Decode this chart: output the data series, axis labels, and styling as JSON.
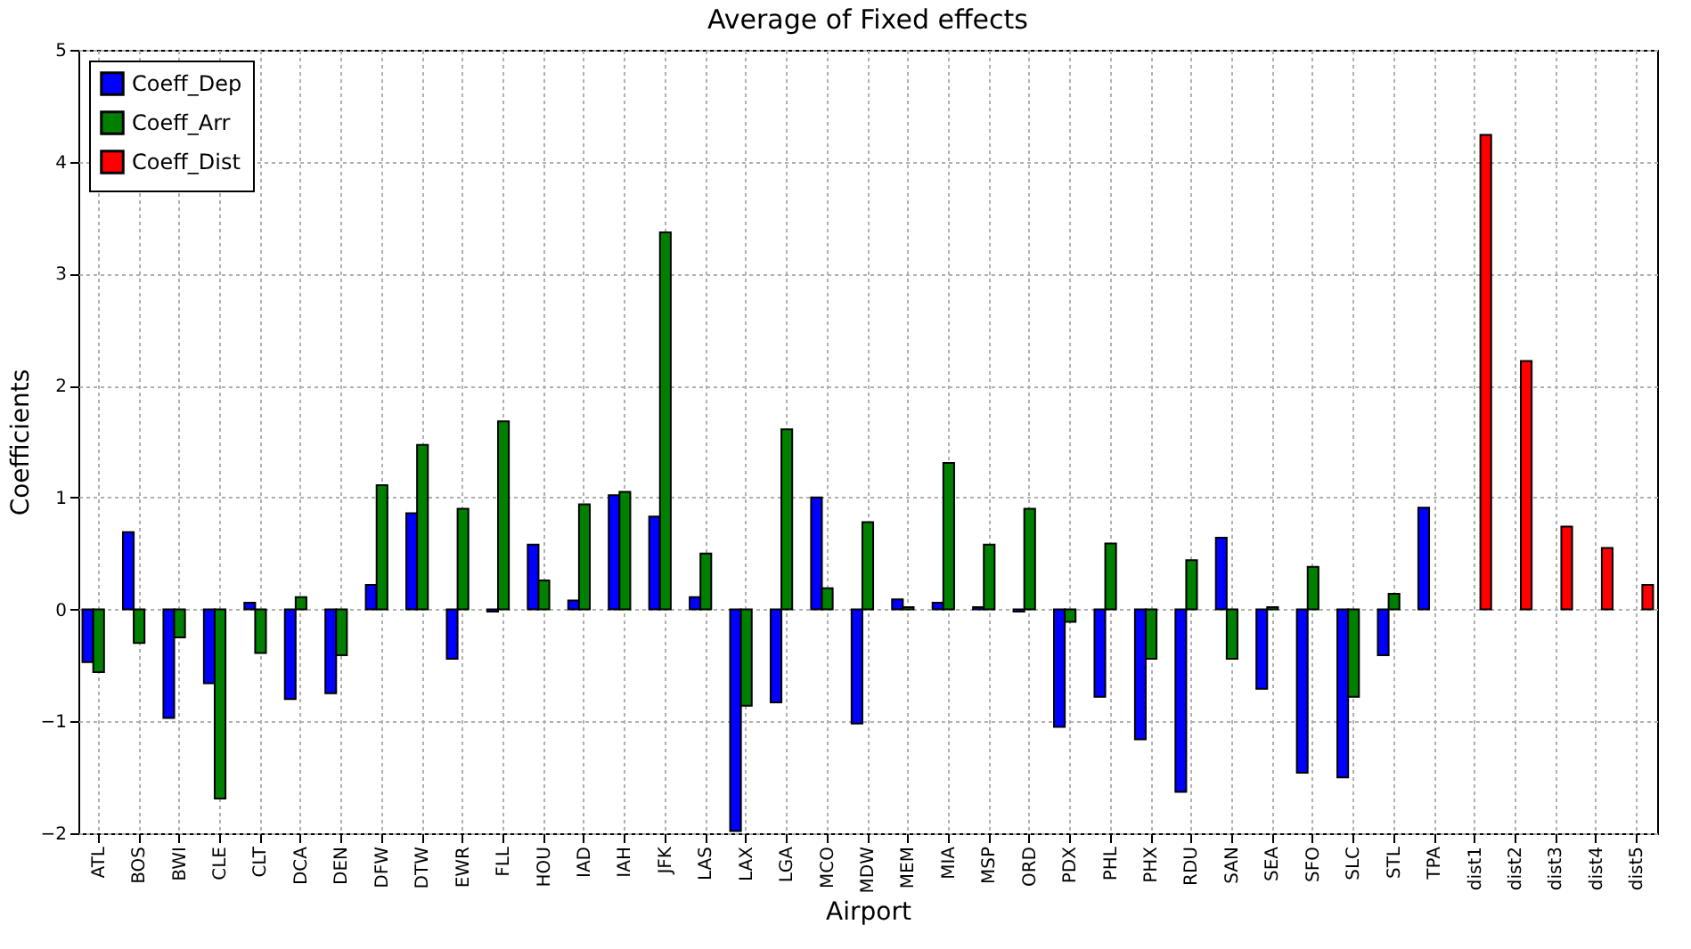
{
  "chart_data": {
    "type": "bar",
    "title": "Average of Fixed effects",
    "xlabel": "Airport",
    "ylabel": "Coefficients",
    "categories": [
      "ATL",
      "BOS",
      "BWI",
      "CLE",
      "CLT",
      "DCA",
      "DEN",
      "DFW",
      "DTW",
      "EWR",
      "FLL",
      "HOU",
      "IAD",
      "IAH",
      "JFK",
      "LAS",
      "LAX",
      "LGA",
      "MCO",
      "MDW",
      "MEM",
      "MIA",
      "MSP",
      "ORD",
      "PDX",
      "PHL",
      "PHX",
      "RDU",
      "SAN",
      "SEA",
      "SFO",
      "SLC",
      "STL",
      "TPA",
      "dist1",
      "dist2",
      "dist3",
      "dist4",
      "dist5"
    ],
    "series": [
      {
        "name": "Coeff_Dep",
        "color": "#0000ff",
        "values": [
          -0.47,
          0.69,
          -0.97,
          -0.66,
          0.06,
          -0.8,
          -0.75,
          0.22,
          0.86,
          -0.44,
          -0.02,
          0.58,
          0.08,
          1.02,
          0.83,
          0.11,
          -1.98,
          -0.83,
          1.0,
          -1.02,
          0.09,
          0.06,
          0.02,
          -0.02,
          -1.05,
          -0.78,
          -1.16,
          -1.63,
          0.64,
          -0.71,
          -1.46,
          -1.5,
          -0.41,
          0.91,
          null,
          null,
          null,
          null,
          null
        ]
      },
      {
        "name": "Coeff_Arr",
        "color": "#008000",
        "values": [
          -0.56,
          -0.3,
          -0.25,
          -1.69,
          -0.39,
          0.11,
          -0.41,
          1.11,
          1.47,
          0.9,
          1.68,
          0.26,
          0.94,
          1.05,
          3.37,
          0.5,
          -0.86,
          1.61,
          0.19,
          0.78,
          0.02,
          1.31,
          0.58,
          0.9,
          -0.11,
          0.59,
          -0.44,
          0.44,
          -0.44,
          0.02,
          0.38,
          -0.78,
          0.14,
          null,
          null,
          null,
          null,
          null,
          null
        ]
      },
      {
        "name": "Coeff_Dist",
        "color": "#ff0000",
        "values": [
          null,
          null,
          null,
          null,
          null,
          null,
          null,
          null,
          null,
          null,
          null,
          null,
          null,
          null,
          null,
          null,
          null,
          null,
          null,
          null,
          null,
          null,
          null,
          null,
          null,
          null,
          null,
          null,
          null,
          null,
          null,
          null,
          null,
          null,
          4.24,
          2.22,
          0.74,
          0.55,
          0.22
        ]
      }
    ],
    "ylim": [
      -2,
      5
    ],
    "yticks": [
      -2,
      -1,
      0,
      1,
      2,
      3,
      4,
      5
    ],
    "grid": true,
    "legend": "top left"
  }
}
